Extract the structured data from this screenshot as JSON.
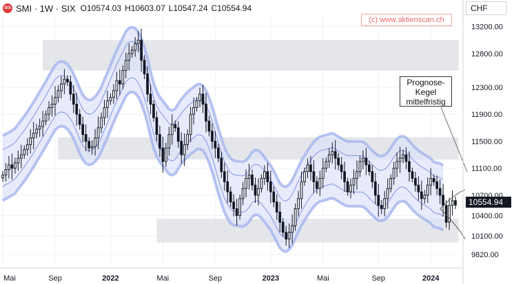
{
  "header": {
    "symbol": "SMI · 1W · SIX",
    "open": "O10574.03",
    "high": "H10603.07",
    "low": "L10547.24",
    "close": "C10554.94",
    "logo_text": "SIX"
  },
  "watermark": "(c) www.aktienscan.ch",
  "currency": "CHF",
  "annotation": {
    "line1": "Prognose-",
    "line2": "Kegel",
    "line3": "mittelfristig"
  },
  "last_price": "10554.94",
  "colors": {
    "candle": "#131722",
    "band_fill": "#dde3fa",
    "band_outer": "#a9b8ee",
    "band_mid": "#7f93df",
    "zone": "#dcdde3",
    "accent_red": "#e03a3a"
  },
  "chart_data": {
    "type": "candlestick",
    "x_labels": [
      "Mai",
      "Sep",
      "2022",
      "Mai",
      "Sep",
      "2023",
      "Mai",
      "Sep",
      "2024"
    ],
    "y_ticks": [
      "13200.00",
      "12800.00",
      "12300.00",
      "11900.00",
      "11500.00",
      "11100.00",
      "10700.00",
      "10400.00",
      "10100.00",
      "9820.00"
    ],
    "y_tick_values": [
      13200,
      12800,
      12300,
      11900,
      11500,
      11100,
      10700,
      10400,
      10100,
      9820
    ],
    "ylim": [
      9700,
      13350
    ],
    "weeks_total": 148,
    "x_label_weeks": [
      0,
      17,
      35,
      52,
      69,
      87,
      104,
      122,
      139
    ],
    "closes": [
      11000,
      11080,
      11150,
      11100,
      11180,
      11250,
      11300,
      11380,
      11450,
      11550,
      11620,
      11680,
      11720,
      11800,
      11900,
      12000,
      12050,
      12150,
      12250,
      12350,
      12420,
      12380,
      12200,
      12050,
      11900,
      11750,
      11600,
      11500,
      11400,
      11420,
      11550,
      11700,
      11850,
      12000,
      12100,
      12150,
      12250,
      12400,
      12350,
      12550,
      12700,
      12800,
      12850,
      12950,
      13000,
      12700,
      12500,
      12200,
      12050,
      11850,
      11600,
      11400,
      11200,
      11400,
      11600,
      11750,
      11700,
      11500,
      11300,
      11450,
      11600,
      11900,
      12000,
      12100,
      12200,
      12050,
      11800,
      11650,
      11500,
      11400,
      11250,
      11050,
      10900,
      10750,
      10600,
      10500,
      10400,
      10650,
      10800,
      10950,
      11000,
      10850,
      10700,
      10800,
      10950,
      11050,
      10900,
      10750,
      10600,
      10450,
      10300,
      10150,
      10050,
      10150,
      10250,
      10500,
      10650,
      10900,
      11050,
      11150,
      11050,
      10900,
      10800,
      10950,
      11100,
      11200,
      11300,
      11350,
      11250,
      11150,
      11050,
      10900,
      10750,
      10850,
      10950,
      11050,
      11200,
      11250,
      11150,
      11050,
      10900,
      10700,
      10550,
      10500,
      10650,
      10800,
      10950,
      11100,
      11200,
      11250,
      11300,
      11200,
      11050,
      10950,
      10850,
      10750,
      10650,
      10700,
      10850,
      10950,
      10900,
      10800,
      10700,
      10550,
      10300,
      10550,
      10620,
      10555
    ],
    "zones": [
      {
        "from_week": 13,
        "to_week": 148,
        "low": 12550,
        "high": 13000
      },
      {
        "from_week": 18,
        "to_week": 148,
        "low": 11230,
        "high": 11560
      },
      {
        "from_week": 50,
        "to_week": 148,
        "low": 10000,
        "high": 10350
      }
    ],
    "annotations": [
      "Prognose-Kegel mittelfristig"
    ]
  }
}
